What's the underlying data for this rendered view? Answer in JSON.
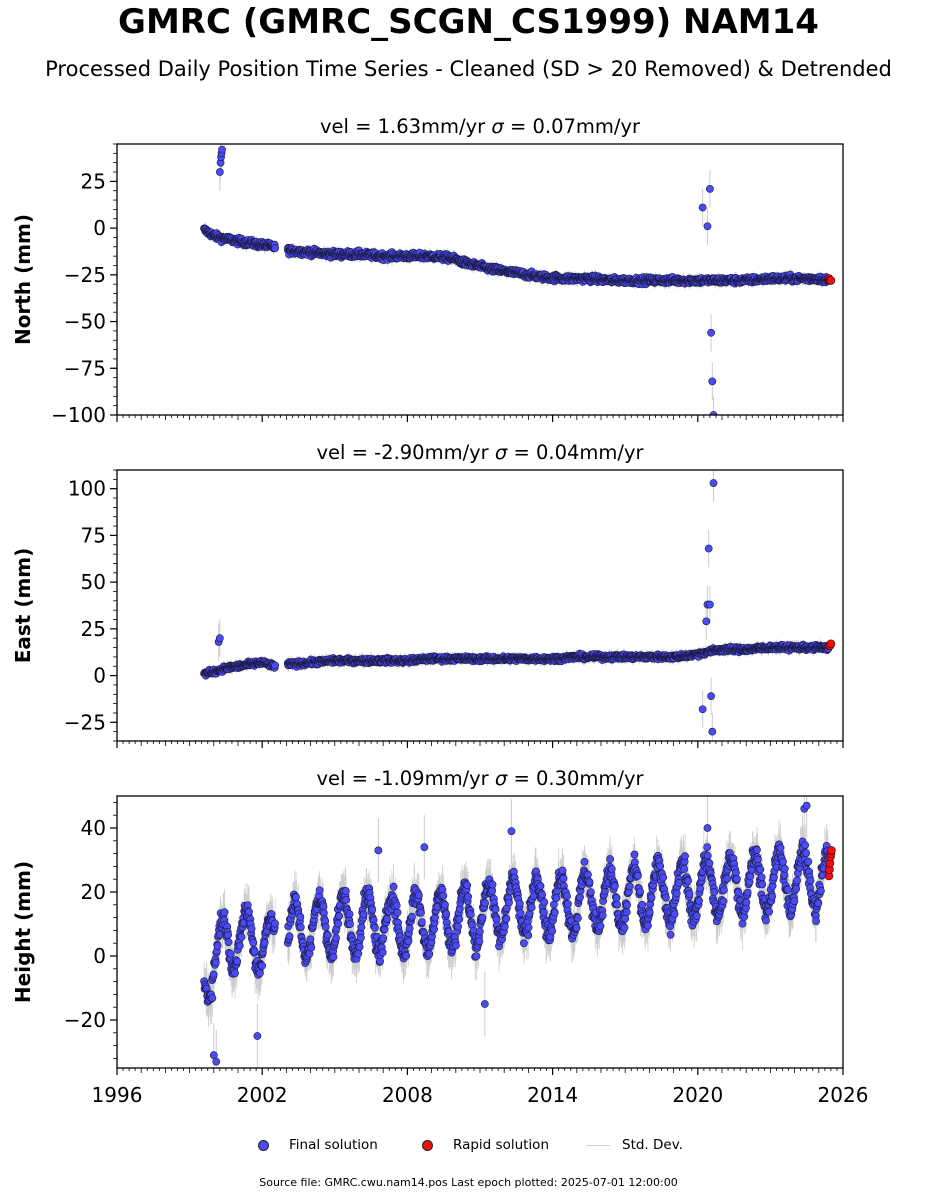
{
  "title": "GMRC (GMRC_SCGN_CS1999) NAM14",
  "subtitle": "Processed Daily Position Time Series - Cleaned (SD > 20 Removed) & Detrended",
  "legend": {
    "final": "Final solution",
    "rapid": "Rapid solution",
    "std": "Std. Dev."
  },
  "colors": {
    "final": "#4b4bf5",
    "rapid": "#ee1111",
    "stddev": "#bcbcbc"
  },
  "source_note": "Source file: GMRC.cwu.nam14.pos  Last epoch plotted: 2025-07-01 12:00:00",
  "chart_data": [
    {
      "type": "scatter",
      "title": "vel = 1.63mm/yr   σ = 0.07mm/yr",
      "vel": "1.63",
      "sigma": "0.07",
      "ylabel": "North (mm)",
      "xlim": [
        1996,
        2026
      ],
      "ylim": [
        -100,
        45
      ],
      "yticks": [
        25,
        0,
        -25,
        -50,
        -75,
        -100
      ],
      "xticks": [
        1996,
        2002,
        2008,
        2014,
        2020,
        2026
      ],
      "show_xticklabels": false,
      "series": [
        {
          "name": "Final solution",
          "kind": "final",
          "x": [
            1999.6,
            2000.0,
            2000.2,
            2000.6,
            2001.0,
            2001.5,
            2002.0,
            2002.5,
            2003.1,
            2004.0,
            2005.0,
            2006.0,
            2007.0,
            2008.0,
            2009.0,
            2009.8,
            2010.5,
            2011.5,
            2012.5,
            2013.5,
            2014.5,
            2015.5,
            2016.5,
            2017.5,
            2018.5,
            2019.5,
            2020.4,
            2021.0,
            2022.0,
            2023.0,
            2024.0,
            2025.0,
            2025.4
          ],
          "y": [
            -1,
            -4,
            -5,
            -6,
            -7,
            -8,
            -9,
            -10,
            -12,
            -13,
            -14,
            -14,
            -15,
            -15,
            -15,
            -16,
            -19,
            -22,
            -24,
            -26,
            -27,
            -27,
            -28,
            -28,
            -28,
            -28,
            -28,
            -28,
            -28,
            -27,
            -27,
            -27,
            -28
          ]
        },
        {
          "name": "Final solution outliers",
          "kind": "final",
          "x": [
            2000.25,
            2000.28,
            2000.3,
            2000.32,
            2000.34,
            2020.2,
            2020.4,
            2020.5,
            2020.55,
            2020.6,
            2020.65
          ],
          "y": [
            30,
            35,
            38,
            40,
            42,
            11,
            1,
            21,
            -56,
            -82,
            -100
          ]
        },
        {
          "name": "Rapid solution",
          "kind": "rapid",
          "x": [
            2025.42,
            2025.46,
            2025.5
          ],
          "y": [
            -27,
            -28,
            -28
          ]
        }
      ]
    },
    {
      "type": "scatter",
      "title": "vel = -2.90mm/yr   σ = 0.04mm/yr",
      "vel": "-2.90",
      "sigma": "0.04",
      "ylabel": "East (mm)",
      "xlim": [
        1996,
        2026
      ],
      "ylim": [
        -35,
        110
      ],
      "yticks": [
        100,
        75,
        50,
        25,
        0,
        -25
      ],
      "xticks": [
        1996,
        2002,
        2008,
        2014,
        2020,
        2026
      ],
      "show_xticklabels": false,
      "series": [
        {
          "name": "Final solution",
          "kind": "final",
          "x": [
            1999.6,
            2000.0,
            2000.5,
            2001.0,
            2001.5,
            2002.0,
            2002.5,
            2003.1,
            2004.0,
            2005.0,
            2006.0,
            2007.0,
            2008.0,
            2009.0,
            2010.0,
            2011.0,
            2012.0,
            2013.0,
            2014.0,
            2015.0,
            2016.0,
            2017.0,
            2018.0,
            2019.0,
            2019.8,
            2020.5,
            2021.0,
            2022.0,
            2023.0,
            2024.0,
            2025.0,
            2025.4
          ],
          "y": [
            1,
            2,
            4,
            5,
            6,
            7,
            5,
            6,
            7,
            8,
            8,
            8,
            8,
            9,
            9,
            9,
            9,
            9,
            9,
            10,
            10,
            10,
            10,
            10,
            11,
            13,
            14,
            14,
            15,
            15,
            15,
            15
          ]
        },
        {
          "name": "Final solution outliers",
          "kind": "final",
          "x": [
            2000.2,
            2000.25,
            2020.2,
            2020.35,
            2020.4,
            2020.45,
            2020.5,
            2020.55,
            2020.6,
            2020.65
          ],
          "y": [
            18,
            20,
            -18,
            29,
            38,
            68,
            38,
            -11,
            -30,
            103
          ]
        },
        {
          "name": "Rapid solution",
          "kind": "rapid",
          "x": [
            2025.42,
            2025.46,
            2025.5
          ],
          "y": [
            16,
            16,
            17
          ]
        }
      ]
    },
    {
      "type": "scatter",
      "title": "vel = -1.09mm/yr   σ = 0.30mm/yr",
      "vel": "-1.09",
      "sigma": "0.30",
      "ylabel": "Height (mm)",
      "xlim": [
        1996,
        2026
      ],
      "ylim": [
        -35,
        50
      ],
      "yticks": [
        40,
        20,
        0,
        -20
      ],
      "xticks": [
        1996,
        2002,
        2008,
        2014,
        2020,
        2026
      ],
      "show_xticklabels": true,
      "series": [
        {
          "name": "Final solution",
          "kind": "final",
          "x": [
            1999.6,
            2000.0,
            2000.5,
            2001.0,
            2001.5,
            2002.0,
            2002.5,
            2003.1,
            2004.0,
            2005.0,
            2006.0,
            2007.0,
            2008.0,
            2009.0,
            2010.0,
            2011.0,
            2012.0,
            2013.0,
            2014.0,
            2015.0,
            2016.0,
            2017.0,
            2018.0,
            2019.0,
            2020.0,
            2021.0,
            2022.0,
            2023.0,
            2024.0,
            2025.0,
            2025.4
          ],
          "y": [
            -8,
            0,
            4,
            6,
            5,
            5,
            3,
            7,
            9,
            10,
            10,
            10,
            10,
            11,
            12,
            13,
            15,
            16,
            16,
            17,
            18,
            18,
            19,
            20,
            21,
            22,
            23,
            23,
            24,
            24,
            24
          ],
          "amplitude": 9
        },
        {
          "name": "Final solution outliers",
          "kind": "final",
          "x": [
            2000.0,
            2000.1,
            2001.8,
            2006.8,
            2008.7,
            2011.2,
            2012.3,
            2020.4,
            2024.4,
            2024.5
          ],
          "y": [
            -31,
            -33,
            -25,
            33,
            34,
            -15,
            39,
            40,
            46,
            47
          ]
        },
        {
          "name": "Rapid solution",
          "kind": "rapid",
          "x": [
            2025.42,
            2025.44,
            2025.46,
            2025.48,
            2025.5,
            2025.52
          ],
          "y": [
            25,
            27,
            29,
            31,
            32,
            33
          ]
        }
      ]
    }
  ]
}
